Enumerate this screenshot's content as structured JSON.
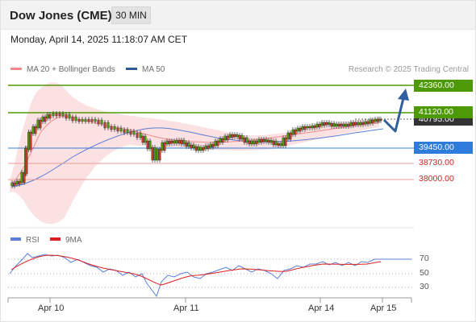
{
  "header": {
    "title": "Dow Jones (CME)",
    "timeframe_label": "30 MIN"
  },
  "datetime": "Monday, April 14, 2025 11:18:07 AM CET",
  "legend": {
    "items": [
      {
        "label": "MA 20 + Bollinger Bands",
        "color": "#f48b8b"
      },
      {
        "label": "MA 50",
        "color": "#2c5b96"
      }
    ]
  },
  "attribution": "Research © 2025 Trading Central",
  "levels": [
    {
      "value": "42360.00",
      "kind": "resistance"
    },
    {
      "value": "41120.00",
      "kind": "resistance"
    },
    {
      "value": "40795.00",
      "kind": "last-price"
    },
    {
      "value": "39450.00",
      "kind": "pivot"
    },
    {
      "value": "38730.00",
      "kind": "support"
    },
    {
      "value": "38000.00",
      "kind": "support"
    }
  ],
  "rsi_legend": {
    "items": [
      {
        "label": "RSI",
        "color": "#5b7fd6"
      },
      {
        "label": "9MA",
        "color": "#e02020"
      }
    ]
  },
  "rsi_ticks": [
    "70",
    "50",
    "30"
  ],
  "x_labels": [
    "Apr 10",
    "Apr 11",
    "Apr 14",
    "Apr 15"
  ],
  "colors": {
    "resistance": "#4e9a06",
    "pivot": "#2f7bdc",
    "support": "#e56b6b",
    "candle_up": "#4e9a06",
    "candle_down": "#c0392b",
    "arrow": "#2f5f9e"
  }
}
